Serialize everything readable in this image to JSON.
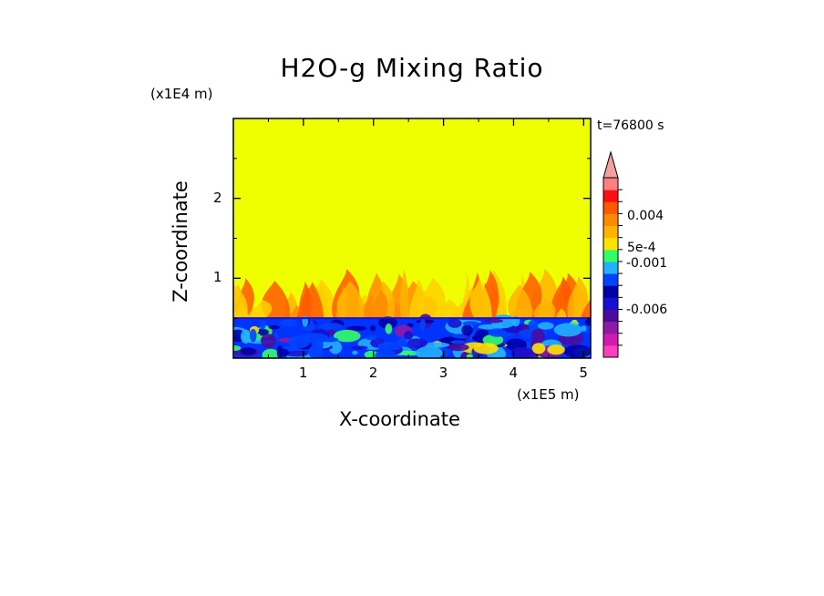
{
  "chart_data": {
    "type": "heatmap",
    "title": "H2O-g Mixing Ratio",
    "xlabel": "X-coordinate",
    "ylabel": "Z-coordinate",
    "x_scale_label": "(x1E5 m)",
    "z_scale_label": "(x1E4 m)",
    "time_label": "t=76800 s",
    "xlim": [
      0,
      5.1
    ],
    "ylim": [
      0,
      3
    ],
    "x_ticks": [
      "1",
      "2",
      "3",
      "4",
      "5"
    ],
    "x_tick_values": [
      1,
      2,
      3,
      4,
      5
    ],
    "y_ticks": [
      "1",
      "2"
    ],
    "y_tick_values": [
      1,
      2
    ],
    "regions": [
      {
        "name": "upper",
        "z_range": [
          1.0,
          3.0
        ],
        "color": "#f0ff00"
      },
      {
        "name": "plume-layer",
        "z_range": [
          0.5,
          1.0
        ],
        "color": "#ffd000"
      },
      {
        "name": "boundary-layer",
        "z_range": [
          0.0,
          0.5
        ],
        "color": "#0033ff"
      }
    ],
    "colorbar": {
      "colors": [
        "#ff3ebf",
        "#d01ab0",
        "#8e1aa6",
        "#4a0c9e",
        "#1a0fd0",
        "#0000a8",
        "#0044ff",
        "#22b0ff",
        "#33ff66",
        "#ffe200",
        "#ffb400",
        "#ff8a00",
        "#ff5a00",
        "#ff0f0f",
        "#ff8080"
      ],
      "extend_top_color": "#f5a0a0",
      "tick_labels": [
        "0.004",
        "5e-4",
        "-0.001",
        "-0.006"
      ],
      "tick_values": [
        0.004,
        0.0005,
        -0.001,
        -0.006
      ]
    }
  }
}
